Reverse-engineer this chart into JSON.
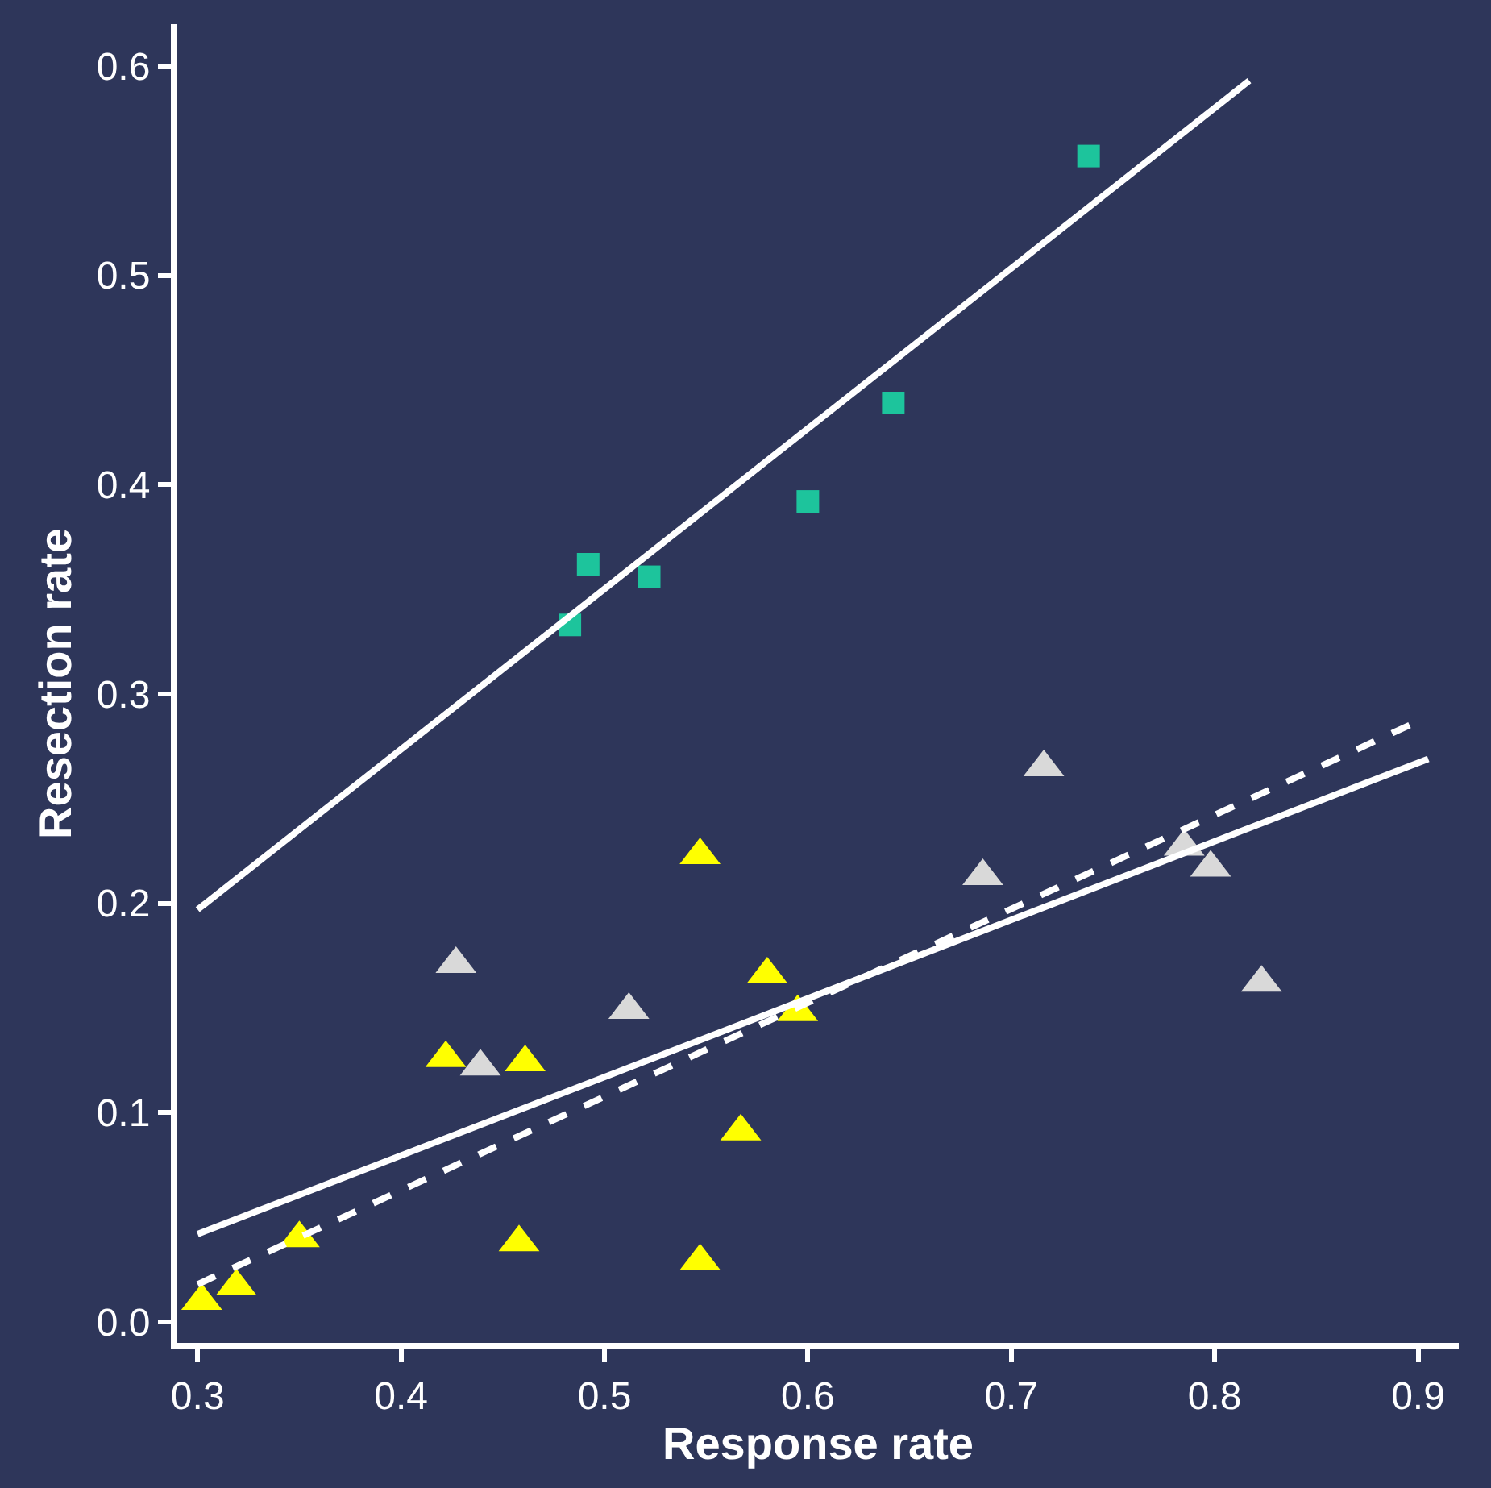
{
  "chart_data": {
    "type": "scatter",
    "xlabel": "Response rate",
    "ylabel": "Resection rate",
    "xlim": [
      0.29,
      0.92
    ],
    "xticks": [
      0.3,
      0.4,
      0.5,
      0.6,
      0.7,
      0.8,
      0.9
    ],
    "ylim": [
      -0.01,
      0.62
    ],
    "yticks": [
      {
        "value": 0,
        "label": "0.0"
      },
      0.1,
      0.2,
      0.3,
      0.4,
      0.5,
      0.6
    ],
    "grid": false,
    "series": [
      {
        "marker": "square",
        "color": "#1dc49c",
        "x": [
          0.483,
          0.492,
          0.522,
          0.6,
          0.642,
          0.738
        ],
        "values": [
          0.333,
          0.362,
          0.356,
          0.392,
          0.439,
          0.557
        ]
      },
      {
        "marker": "triangle",
        "color": "#ffff00",
        "x": [
          0.302,
          0.319,
          0.35,
          0.422,
          0.461,
          0.458,
          0.547,
          0.547,
          0.567,
          0.58,
          0.595
        ],
        "values": [
          0.01,
          0.017,
          0.04,
          0.126,
          0.124,
          0.038,
          0.223,
          0.029,
          0.091,
          0.166,
          0.148
        ]
      },
      {
        "marker": "triangle",
        "color": "#d9d9d9",
        "x": [
          0.427,
          0.439,
          0.512,
          0.686,
          0.716,
          0.785,
          0.798,
          0.823
        ],
        "values": [
          0.171,
          0.122,
          0.149,
          0.213,
          0.265,
          0.227,
          0.217,
          0.162
        ]
      },
      {
        "type": "line",
        "line_style": "solid",
        "color": "#ffffff",
        "x": [
          0.3,
          0.817
        ],
        "values": [
          0.197,
          0.593
        ]
      },
      {
        "type": "line",
        "line_style": "solid",
        "color": "#ffffff",
        "x": [
          0.3,
          0.905
        ],
        "values": [
          0.042,
          0.269
        ]
      },
      {
        "type": "line",
        "line_style": "dashed",
        "color": "#ffffff",
        "x": [
          0.3,
          0.9
        ],
        "values": [
          0.018,
          0.287
        ]
      }
    ]
  }
}
